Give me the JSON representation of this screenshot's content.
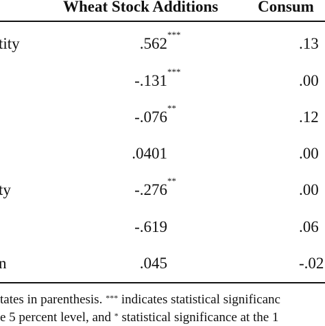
{
  "table": {
    "headers": {
      "col1": "Wheat Stock Additions",
      "col2": "Consum"
    },
    "rows": [
      {
        "label": "tity",
        "col1": ".562",
        "stars": "***",
        "col2": ".13"
      },
      {
        "label": "",
        "col1": "-.131",
        "stars": "***",
        "col2": ".00"
      },
      {
        "label": "",
        "col1": "-.076",
        "stars": "**",
        "col2": ".12"
      },
      {
        "label": "",
        "col1": ".0401",
        "stars": "",
        "col2": ".00"
      },
      {
        "label": "ty",
        "col1": "-.276",
        "stars": "**",
        "col2": ".00"
      },
      {
        "label": "",
        "col1": "-.619",
        "stars": "",
        "col2": ".06"
      },
      {
        "label": "n",
        "col1": ".045",
        "stars": "",
        "col2": "-.02"
      }
    ]
  },
  "footnote": {
    "line1_a": "tates in parenthesis.",
    "line1_sup": "***",
    "line1_b": "indicates statistical significanc",
    "line2_a": "e 5 percent level, and",
    "line2_sup": "*",
    "line2_b": "statistical significance at the 1"
  }
}
